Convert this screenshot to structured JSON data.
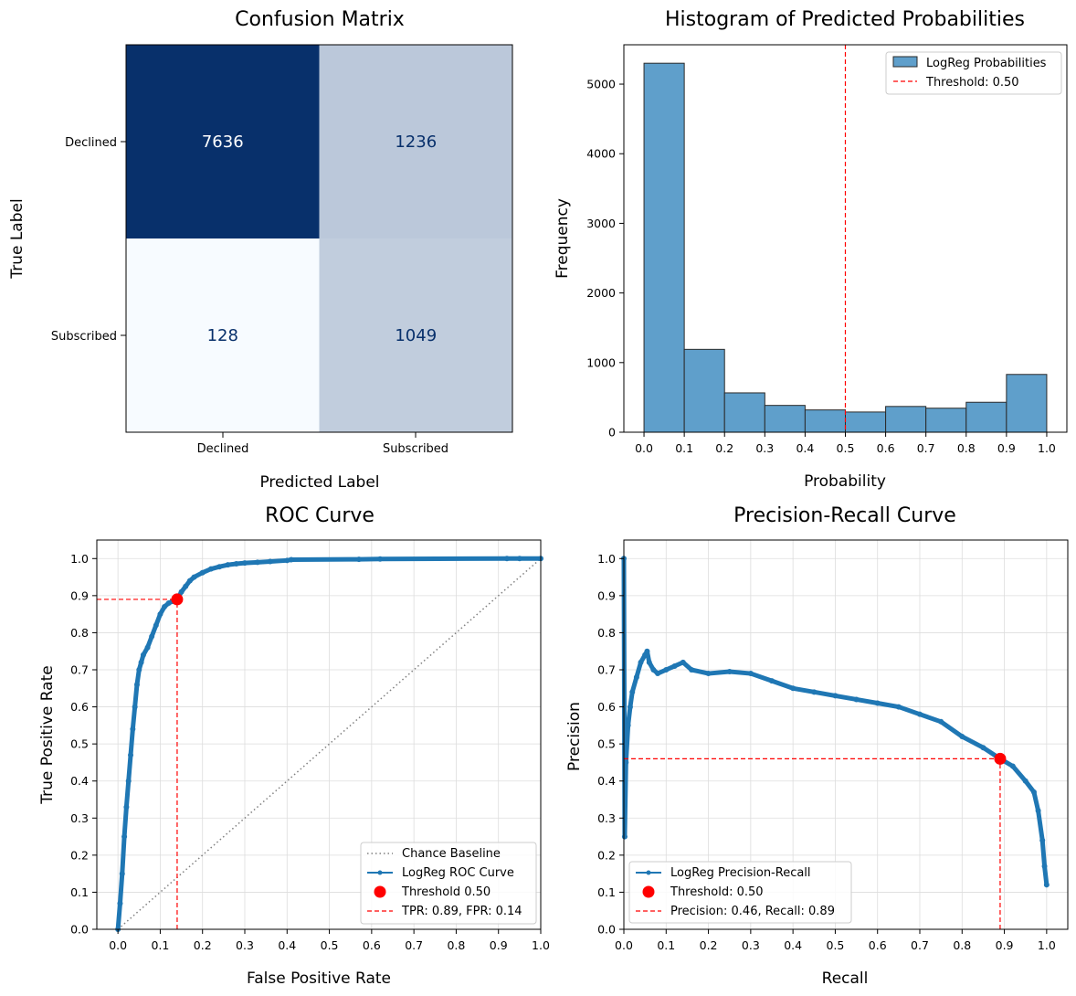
{
  "chart_data": [
    {
      "type": "heatmap",
      "title": "Confusion Matrix",
      "xlabel": "Predicted Label",
      "ylabel": "True Label",
      "x_categories": [
        "Declined",
        "Subscribed"
      ],
      "y_categories": [
        "Declined",
        "Subscribed"
      ],
      "values": [
        [
          7636,
          1236
        ],
        [
          128,
          1049
        ]
      ],
      "colormap": {
        "low": "#f7fbff",
        "high": "#08306b",
        "light_text": "#ffffff",
        "dark_text": "#08306b"
      }
    },
    {
      "type": "bar",
      "title": "Histogram of Predicted Probabilities",
      "xlabel": "Probability",
      "ylabel": "Frequency",
      "bin_edges": [
        0.0,
        0.1,
        0.2,
        0.3,
        0.4,
        0.5,
        0.6,
        0.7,
        0.8,
        0.9,
        1.0
      ],
      "values": [
        5300,
        1190,
        565,
        385,
        320,
        290,
        370,
        345,
        430,
        830
      ],
      "xlim": [
        -0.05,
        1.05
      ],
      "ylim": [
        0,
        5565
      ],
      "xticks": [
        "0.0",
        "0.1",
        "0.2",
        "0.3",
        "0.4",
        "0.5",
        "0.6",
        "0.7",
        "0.8",
        "0.9",
        "1.0"
      ],
      "yticks": [
        "0",
        "1000",
        "2000",
        "3000",
        "4000",
        "5000"
      ],
      "threshold": 0.5,
      "legend": [
        {
          "label": "LogReg Probabilities",
          "kind": "bar"
        },
        {
          "label": "Threshold: 0.50",
          "kind": "dashed"
        }
      ],
      "legend_position": "top-right",
      "colors": {
        "bar": "#5f9fcb",
        "edge": "#2a2a2a",
        "threshold": "#ff0000"
      }
    },
    {
      "type": "line",
      "title": "ROC Curve",
      "xlabel": "False Positive Rate",
      "ylabel": "True Positive Rate",
      "xlim": [
        -0.05,
        1.0
      ],
      "ylim": [
        0.0,
        1.05
      ],
      "xticks": [
        "0.0",
        "0.1",
        "0.2",
        "0.3",
        "0.4",
        "0.5",
        "0.6",
        "0.7",
        "0.8",
        "0.9",
        "1.0"
      ],
      "yticks": [
        "0.0",
        "0.1",
        "0.2",
        "0.3",
        "0.4",
        "0.5",
        "0.6",
        "0.7",
        "0.8",
        "0.9",
        "1.0"
      ],
      "grid": true,
      "series": [
        {
          "name": "Chance Baseline",
          "style": "dotted",
          "x": [
            0.0,
            1.0
          ],
          "y": [
            0.0,
            1.0
          ]
        },
        {
          "name": "LogReg ROC Curve",
          "style": "solid-markers",
          "x": [
            0.0,
            0.005,
            0.01,
            0.015,
            0.02,
            0.025,
            0.03,
            0.035,
            0.04,
            0.045,
            0.05,
            0.055,
            0.06,
            0.07,
            0.08,
            0.09,
            0.1,
            0.11,
            0.12,
            0.13,
            0.14,
            0.15,
            0.16,
            0.17,
            0.18,
            0.2,
            0.22,
            0.24,
            0.26,
            0.28,
            0.3,
            0.33,
            0.36,
            0.4,
            0.41,
            0.57,
            0.62,
            0.92,
            0.95,
            1.0
          ],
          "y": [
            0.0,
            0.07,
            0.15,
            0.25,
            0.33,
            0.4,
            0.47,
            0.54,
            0.6,
            0.66,
            0.7,
            0.72,
            0.74,
            0.76,
            0.79,
            0.82,
            0.85,
            0.87,
            0.88,
            0.885,
            0.89,
            0.91,
            0.925,
            0.94,
            0.95,
            0.962,
            0.972,
            0.978,
            0.983,
            0.986,
            0.988,
            0.99,
            0.992,
            0.995,
            0.997,
            0.998,
            0.999,
            1.0,
            1.0,
            1.0
          ]
        },
        {
          "name": "Threshold 0.50",
          "style": "point",
          "x": [
            0.14
          ],
          "y": [
            0.89
          ]
        },
        {
          "name": "TPR: 0.89, FPR: 0.14",
          "style": "dashed-guides",
          "x": [
            0.14
          ],
          "y": [
            0.89
          ]
        }
      ],
      "legend_position": "lower-right",
      "colors": {
        "curve": "#1f77b4",
        "baseline": "#808080",
        "threshold": "#ff0000"
      }
    },
    {
      "type": "line",
      "title": "Precision-Recall Curve",
      "xlabel": "Recall",
      "ylabel": "Precision",
      "xlim": [
        0.0,
        1.05
      ],
      "ylim": [
        0.0,
        1.05
      ],
      "xticks": [
        "0.0",
        "0.1",
        "0.2",
        "0.3",
        "0.4",
        "0.5",
        "0.6",
        "0.7",
        "0.8",
        "0.9",
        "1.0"
      ],
      "yticks": [
        "0.0",
        "0.1",
        "0.2",
        "0.3",
        "0.4",
        "0.5",
        "0.6",
        "0.7",
        "0.8",
        "0.9",
        "1.0"
      ],
      "grid": true,
      "series": [
        {
          "name": "LogReg Precision-Recall",
          "style": "solid-markers",
          "x": [
            0.0,
            0.002,
            0.005,
            0.01,
            0.015,
            0.02,
            0.03,
            0.04,
            0.05,
            0.055,
            0.06,
            0.07,
            0.08,
            0.1,
            0.12,
            0.14,
            0.16,
            0.2,
            0.25,
            0.3,
            0.35,
            0.4,
            0.45,
            0.5,
            0.55,
            0.6,
            0.65,
            0.7,
            0.75,
            0.8,
            0.85,
            0.89,
            0.92,
            0.95,
            0.97,
            0.98,
            0.99,
            0.995,
            1.0
          ],
          "y": [
            1.0,
            0.25,
            0.45,
            0.55,
            0.6,
            0.64,
            0.68,
            0.72,
            0.74,
            0.75,
            0.72,
            0.7,
            0.69,
            0.7,
            0.71,
            0.72,
            0.7,
            0.69,
            0.695,
            0.69,
            0.67,
            0.65,
            0.64,
            0.63,
            0.62,
            0.61,
            0.6,
            0.58,
            0.56,
            0.52,
            0.49,
            0.46,
            0.44,
            0.4,
            0.37,
            0.32,
            0.24,
            0.17,
            0.12
          ]
        },
        {
          "name": "Threshold: 0.50",
          "style": "point",
          "x": [
            0.89
          ],
          "y": [
            0.46
          ]
        },
        {
          "name": "Precision: 0.46, Recall: 0.89",
          "style": "dashed-guides",
          "x": [
            0.89
          ],
          "y": [
            0.46
          ]
        }
      ],
      "legend_position": "lower-left",
      "colors": {
        "curve": "#1f77b4",
        "threshold": "#ff0000"
      }
    }
  ]
}
